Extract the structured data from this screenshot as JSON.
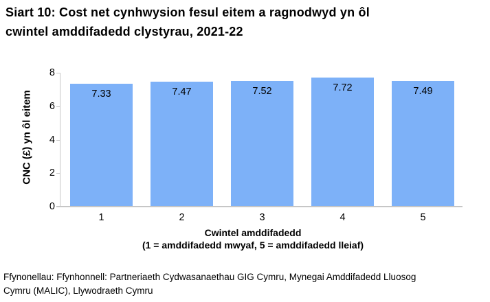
{
  "header": {
    "title_lines": [
      "Siart 10: Cost net cynhwysion fesul eitem a ragnodwyd yn ôl",
      "cwintel amddifadedd clystyrau, 2021-22"
    ]
  },
  "chart_data": {
    "type": "bar",
    "title": "Siart 10: Cost net cynhwysion fesul eitem a ragnodwyd yn ôl cwintel amddifadedd clystyrau, 2021-22",
    "categories": [
      "1",
      "2",
      "3",
      "4",
      "5"
    ],
    "values": [
      7.33,
      7.47,
      7.52,
      7.72,
      7.49
    ],
    "value_labels": [
      "7.33",
      "7.47",
      "7.52",
      "7.72",
      "7.49"
    ],
    "xlabel": "Cwintel amddifadedd",
    "xlabel_note": "(1 = amddifadedd mwyaf, 5 = amddifadedd lleiaf)",
    "ylabel": "CNC (£) yn ôl eitem",
    "ylim": [
      0,
      8
    ],
    "yticks": [
      0,
      2,
      4,
      6,
      8
    ],
    "grid": false,
    "legend": "none",
    "value_label_position": "inside-top",
    "bar_color": "#7DB1F8",
    "axis_color": "#C6C6C6",
    "text_color": "#000000"
  },
  "footer": {
    "lines": [
      "Ffynonellau: Ffynhonnell: Partneriaeth Cydwasanaethau GIG Cymru, Mynegai Amddifadedd Lluosog",
      "Cymru (MALIC), Llywodraeth Cymru"
    ]
  }
}
